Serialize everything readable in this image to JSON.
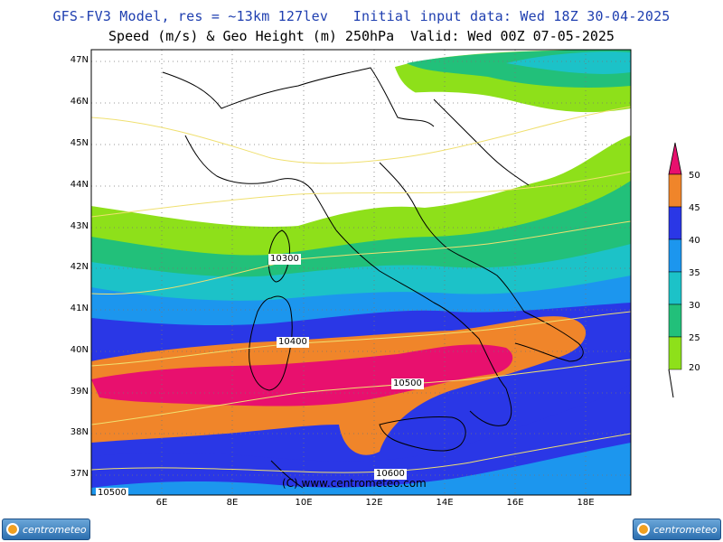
{
  "header": {
    "title_line1": "GFS-FV3 Model, res = ~13km 127lev   Initial input data: Wed 18Z 30-04-2025",
    "title_line2": "Speed (m/s) & Geo Height (m) 250hPa  Valid: Wed 00Z 07-05-2025"
  },
  "map": {
    "lat_labels": [
      "47N",
      "46N",
      "45N",
      "44N",
      "43N",
      "42N",
      "41N",
      "40N",
      "39N",
      "38N",
      "37N"
    ],
    "lon_labels": [
      "6E",
      "8E",
      "10E",
      "12E",
      "14E",
      "16E",
      "18E"
    ],
    "contour_labels": [
      "10300",
      "10400",
      "10500",
      "10600",
      "10500"
    ],
    "copyright": "(C) www.centrometeo.com"
  },
  "colorbar": {
    "levels": [
      "50",
      "45",
      "40",
      "35",
      "30",
      "25",
      "20"
    ],
    "colors": [
      "#e8106e",
      "#f0852a",
      "#2a37e6",
      "#1c96ee",
      "#1cc2c8",
      "#22c07a",
      "#8ee01a"
    ]
  },
  "logo": {
    "text": "centrometeo"
  }
}
